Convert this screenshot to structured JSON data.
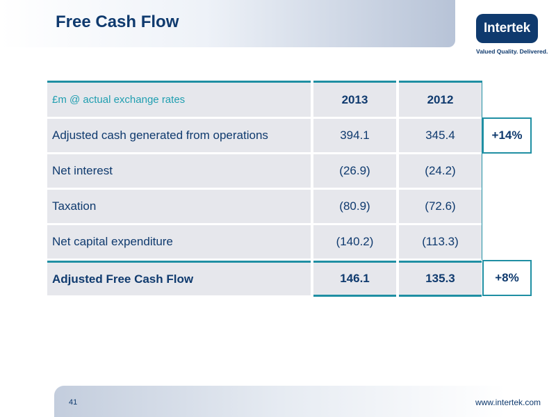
{
  "slide": {
    "title": "Free Cash Flow",
    "page_number": "41",
    "website": "www.intertek.com"
  },
  "logo": {
    "name": "Intertek",
    "tagline": "Valued Quality. Delivered."
  },
  "colors": {
    "navy": "#0f3a6e",
    "teal": "#1f8fa3",
    "cell_bg": "#e6e7ec"
  },
  "table": {
    "header": {
      "label": "£m @ actual exchange rates",
      "years": [
        "2013",
        "2012"
      ]
    },
    "rows": [
      {
        "label": "Adjusted cash generated from operations",
        "v2013": "394.1",
        "v2012": "345.4",
        "growth": "+14%"
      },
      {
        "label": "Net interest",
        "v2013": "(26.9)",
        "v2012": "(24.2)",
        "growth": ""
      },
      {
        "label": "Taxation",
        "v2013": "(80.9)",
        "v2012": "(72.6)",
        "growth": ""
      },
      {
        "label": "Net capital expenditure",
        "v2013": "(140.2)",
        "v2012": "(113.3)",
        "growth": ""
      },
      {
        "label": "Adjusted Free Cash Flow",
        "v2013": "146.1",
        "v2012": "135.3",
        "growth": "+8%"
      }
    ]
  }
}
